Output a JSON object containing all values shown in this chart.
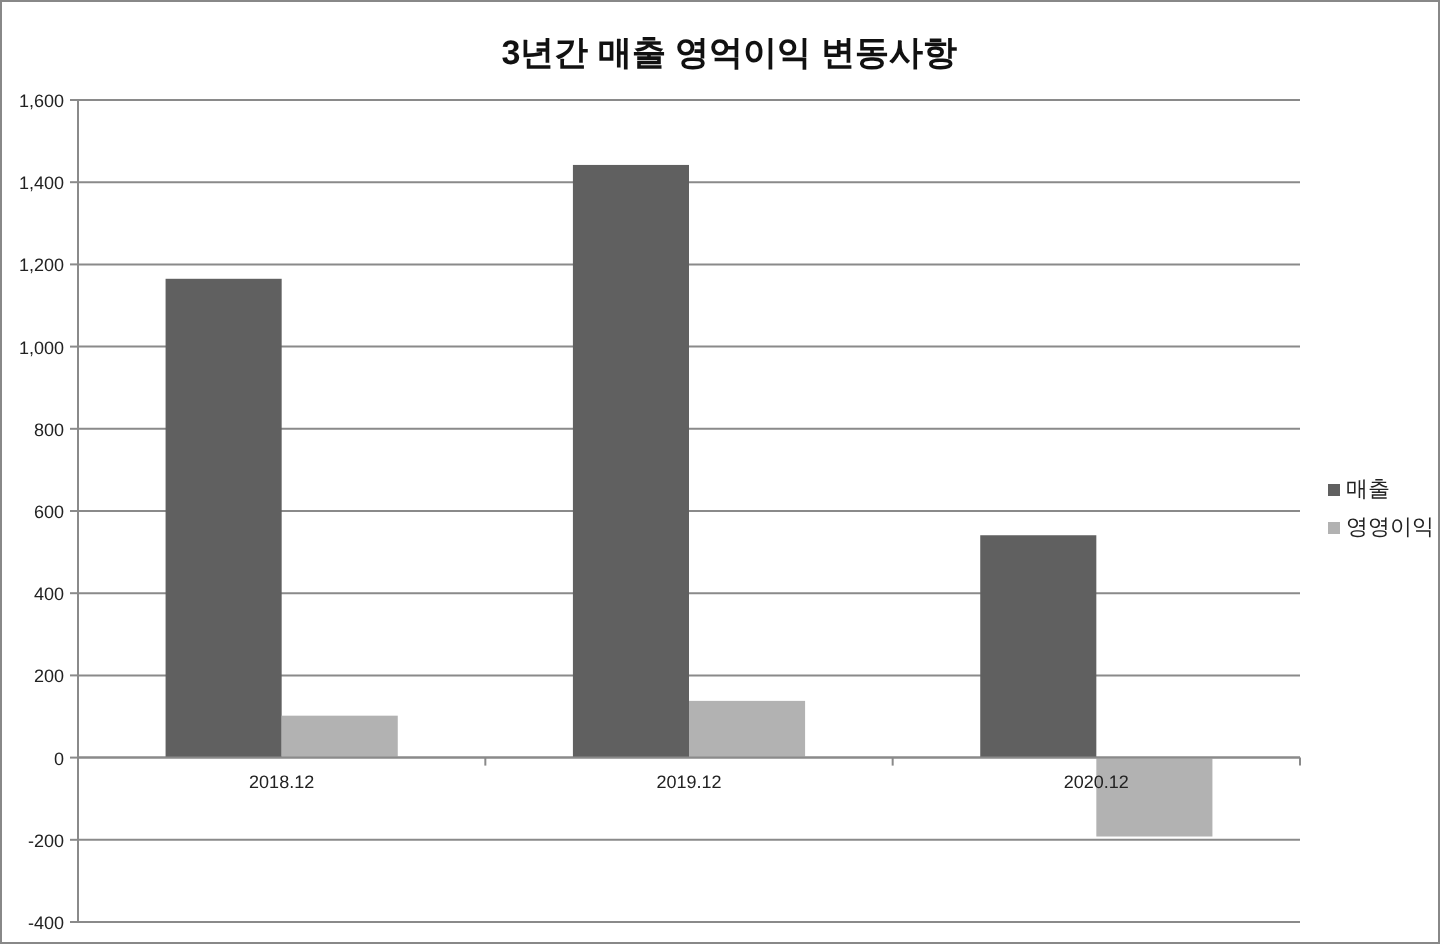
{
  "chart_data": {
    "type": "bar",
    "title": "3년간 매출 영억이익 변동사항",
    "categories": [
      "2018.12",
      "2019.12",
      "2020.12"
    ],
    "series": [
      {
        "name": "매출",
        "color": "#606060",
        "values": [
          1165,
          1442,
          541
        ]
      },
      {
        "name": "영영이익",
        "color": "#b2b2b2",
        "values": [
          102,
          138,
          -192
        ]
      }
    ],
    "ylim": [
      -400,
      1600
    ],
    "yticks": [
      {
        "value": -400,
        "label": "-400"
      },
      {
        "value": -200,
        "label": "-200"
      },
      0,
      200,
      400,
      600,
      800,
      {
        "value": 1000,
        "label": "1,000"
      },
      {
        "value": 1200,
        "label": "1,200"
      },
      {
        "value": 1400,
        "label": "1,400"
      },
      {
        "value": 1600,
        "label": "1,600"
      }
    ],
    "grid": "y",
    "legend": "right"
  }
}
